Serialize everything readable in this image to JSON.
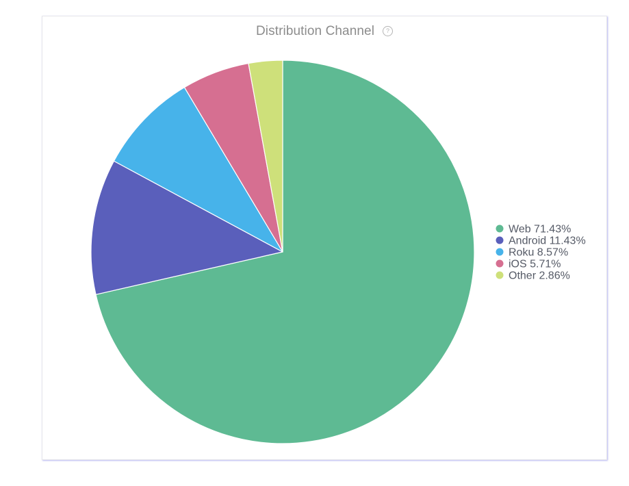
{
  "chart_data": {
    "type": "pie",
    "title": "Distribution Channel",
    "slices": [
      {
        "label": "Web",
        "value": 71.43,
        "display": "Web 71.43%",
        "color": "#5eba93"
      },
      {
        "label": "Android",
        "value": 11.43,
        "display": "Android 11.43%",
        "color": "#5a5fbb"
      },
      {
        "label": "Roku",
        "value": 8.57,
        "display": "Roku 8.57%",
        "color": "#47b3ea"
      },
      {
        "label": "iOS",
        "value": 5.71,
        "display": "iOS 5.71%",
        "color": "#d66f91"
      },
      {
        "label": "Other",
        "value": 2.86,
        "display": "Other 2.86%",
        "color": "#cee07a"
      }
    ],
    "legend_position": "right"
  },
  "icons": {
    "help": "question-circle-icon"
  }
}
